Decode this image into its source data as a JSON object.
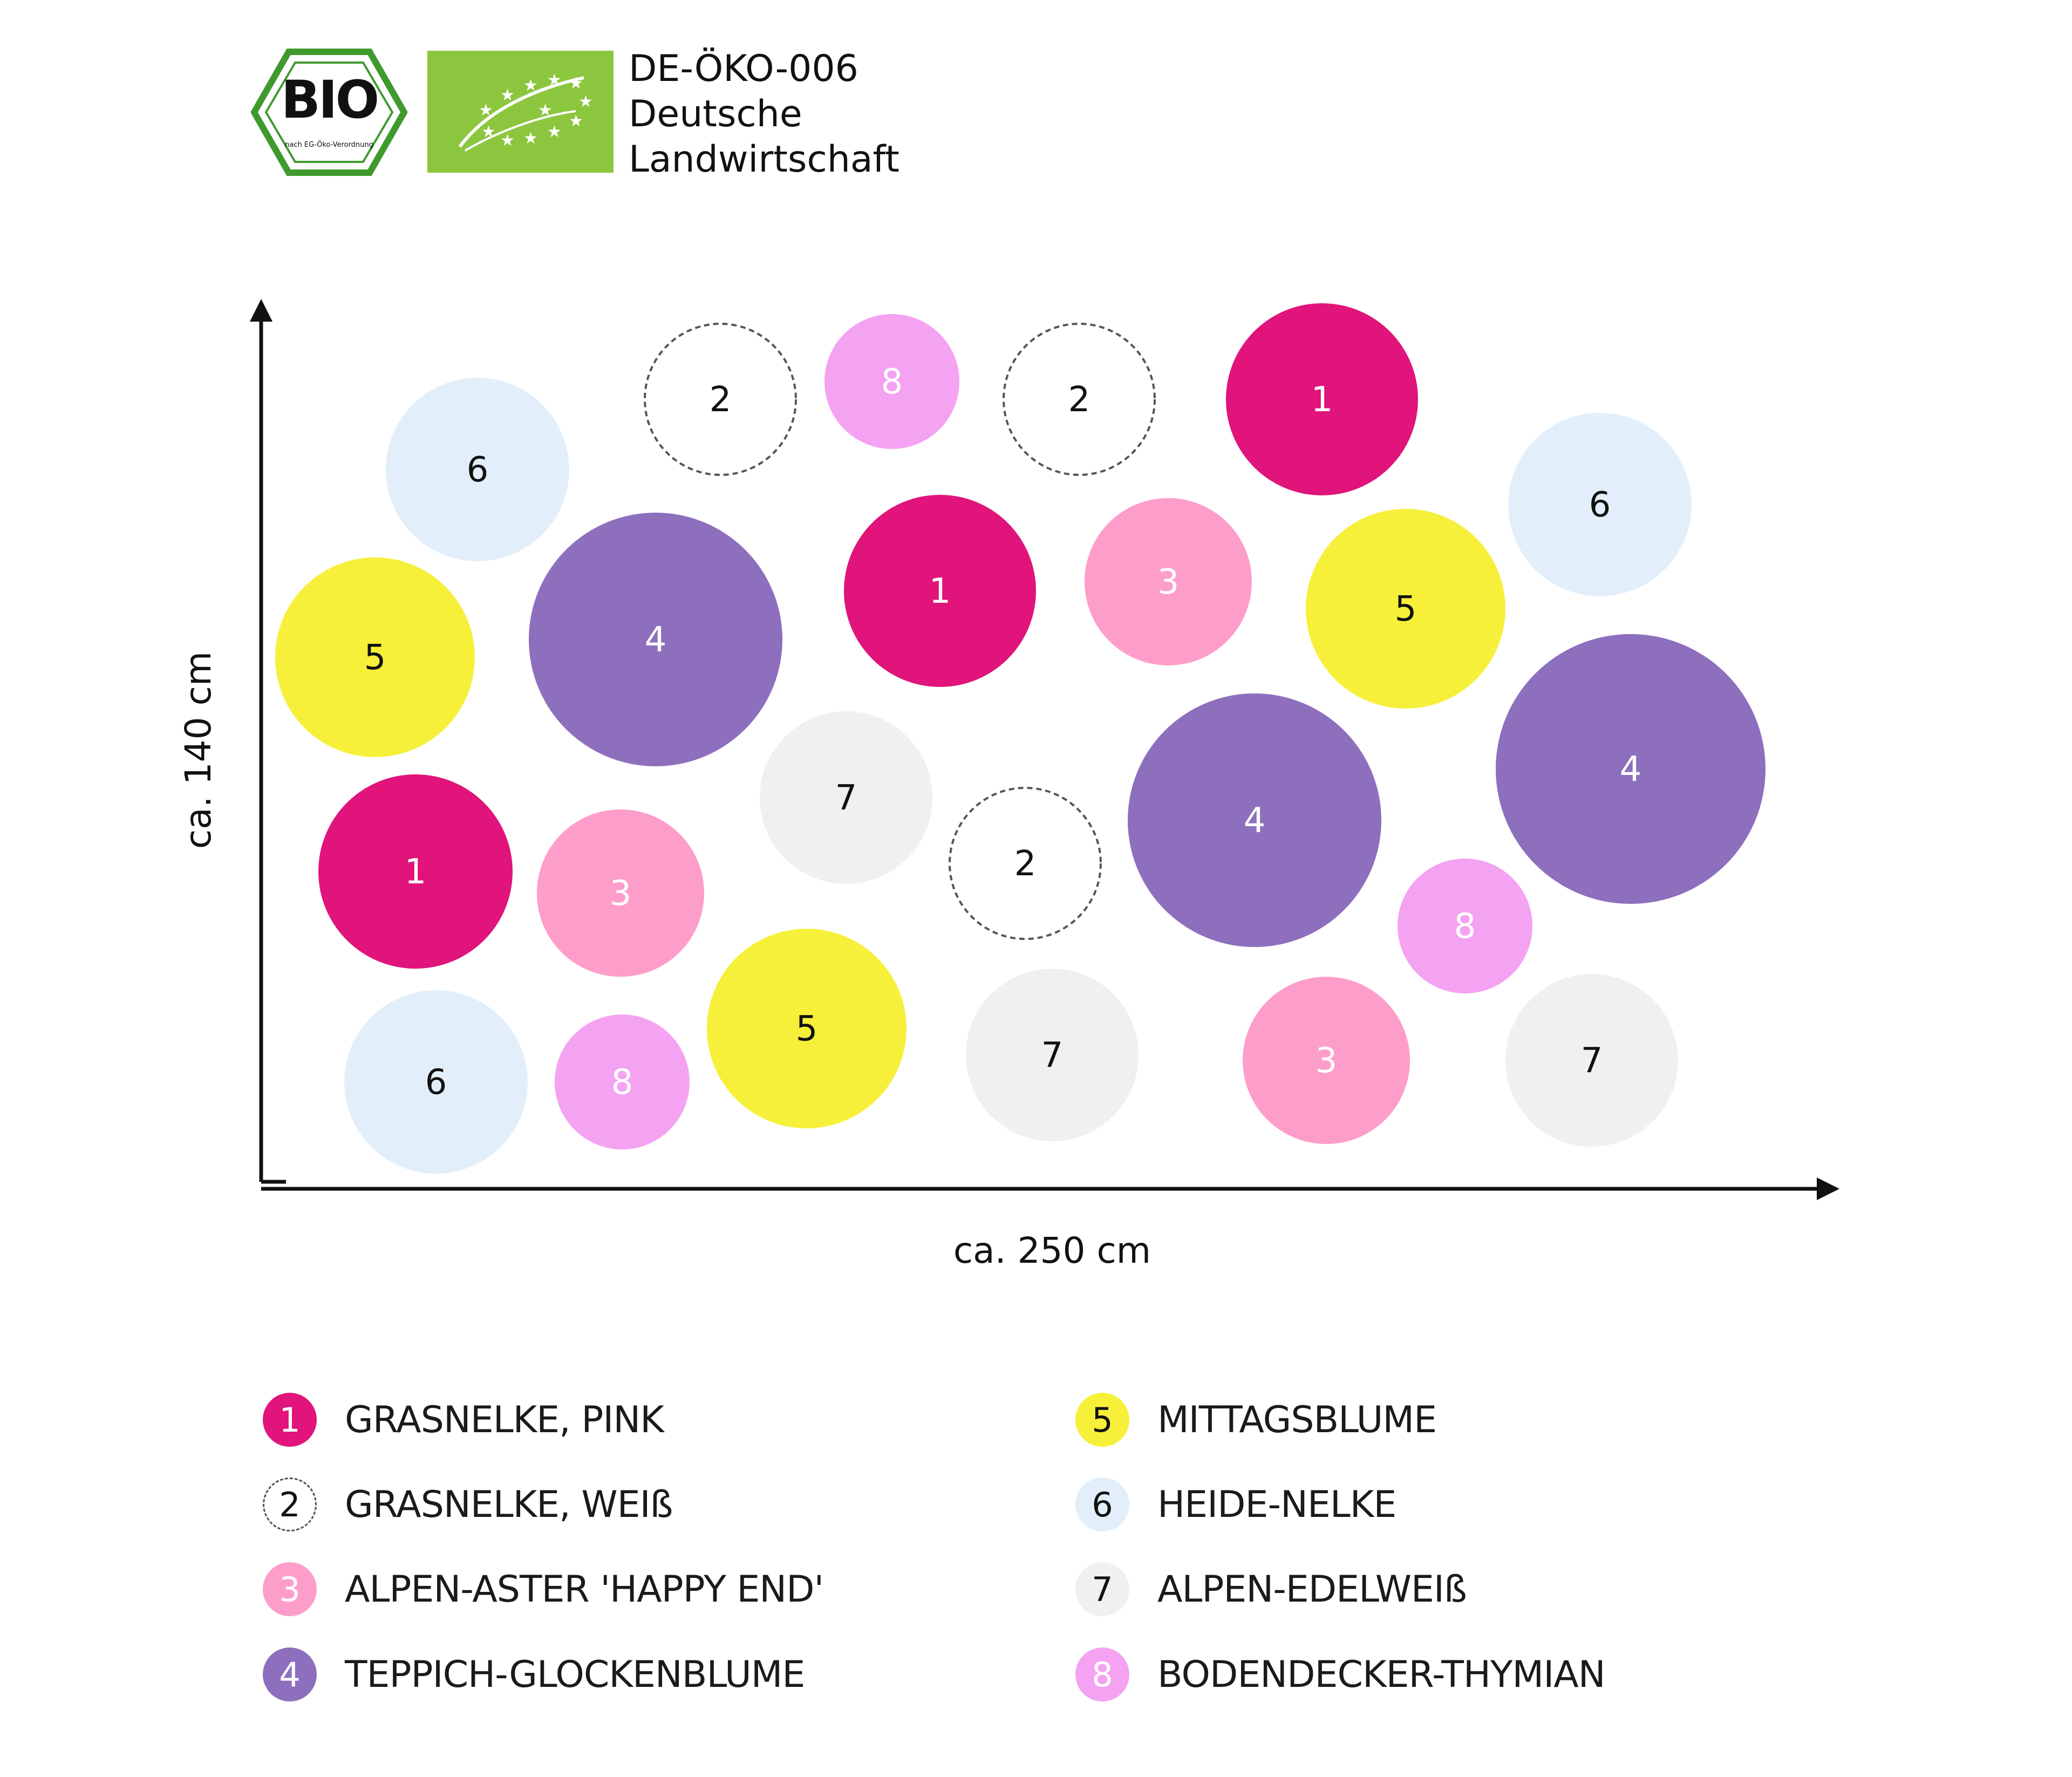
{
  "certification": {
    "bio_logo_text": "BIO",
    "bio_logo_subtext": "nach EG-Öko-Verordnung",
    "eu_logo": "eu-organic-leaf-logo",
    "code": "DE-ÖKO-006",
    "origin_line1": "Deutsche",
    "origin_line2": "Landwirtschaft"
  },
  "dimensions": {
    "height_label": "ca. 140 cm",
    "width_label": "ca. 250 cm"
  },
  "colors": {
    "1": "#e0147a",
    "2": "#ffffff",
    "3": "#fd9dca",
    "4": "#8d6fbd",
    "5": "#f6f03a",
    "6": "#e2effa",
    "7": "#f0f0f0",
    "8": "#f4a2f2"
  },
  "plants": [
    {
      "id": "1",
      "name": "GRASNELKE, PINK"
    },
    {
      "id": "2",
      "name": "GRASNELKE, WEIß"
    },
    {
      "id": "3",
      "name": "ALPEN-ASTER 'HAPPY END'"
    },
    {
      "id": "4",
      "name": "TEPPICH-GLOCKENBLUME"
    },
    {
      "id": "5",
      "name": "MITTAGSBLUME"
    },
    {
      "id": "6",
      "name": "HEIDE-NELKE"
    },
    {
      "id": "7",
      "name": "ALPEN-EDELWEIß"
    },
    {
      "id": "8",
      "name": "BODENDECKER-THYMIAN"
    }
  ],
  "bed_layout": [
    "2",
    "8",
    "2",
    "1",
    "6",
    "6",
    "5",
    "4",
    "1",
    "3",
    "5",
    "7",
    "4",
    "4",
    "1",
    "3",
    "2",
    "8",
    "6",
    "8",
    "5",
    "7",
    "3",
    "7"
  ]
}
